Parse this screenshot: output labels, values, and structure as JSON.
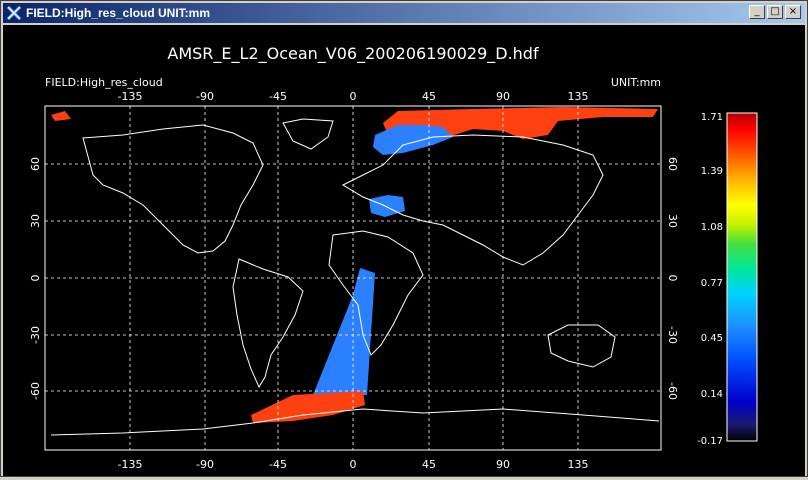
{
  "window": {
    "title": "FIELD:High_res_cloud  UNIT:mm"
  },
  "buttons": {
    "minimize": "_",
    "maximize": "□",
    "close": "×"
  },
  "plot": {
    "title": "AMSR_E_L2_Ocean_V06_200206190029_D.hdf",
    "field_label": "FIELD:High_res_cloud",
    "unit_label": "UNIT:mm"
  },
  "colors": {
    "titlebar": "#0a246a",
    "canvas": "#000000"
  },
  "chart_data": {
    "type": "heatmap",
    "lon_ticks": [
      "-135",
      "-90",
      "-45",
      "0",
      "45",
      "90",
      "135"
    ],
    "lat_ticks": [
      "60",
      "30",
      "0",
      "-30",
      "-60"
    ],
    "colorbar_ticks": [
      "1.71",
      "1.39",
      "1.08",
      "0.77",
      "0.45",
      "0.14",
      "-0.17"
    ],
    "colorbar_range": [
      -0.17,
      1.71
    ],
    "grid": true
  }
}
